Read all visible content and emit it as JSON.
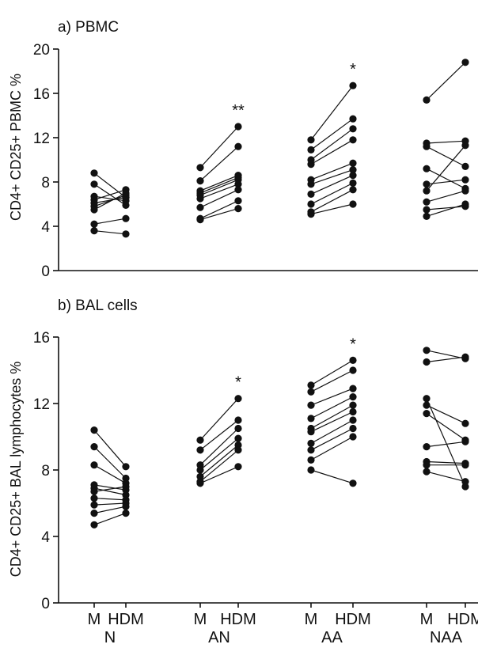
{
  "chart_data": [
    {
      "type": "scatter",
      "panel_label": "a) PBMC",
      "ylabel": "CD4+ CD25+ PBMC  %",
      "ylim": [
        0,
        20
      ],
      "yticks": [
        0,
        4,
        8,
        12,
        16,
        20
      ],
      "groups": [
        {
          "name": "N",
          "significance": "",
          "pairs": [
            [
              8.8,
              6.6
            ],
            [
              7.8,
              5.9
            ],
            [
              6.7,
              6.3
            ],
            [
              6.4,
              7.3
            ],
            [
              6.1,
              6.6
            ],
            [
              5.8,
              6.8
            ],
            [
              5.5,
              7.0
            ],
            [
              4.2,
              4.7
            ],
            [
              3.6,
              3.3
            ]
          ]
        },
        {
          "name": "AN",
          "significance": "**",
          "pairs": [
            [
              9.3,
              13.0
            ],
            [
              8.1,
              11.2
            ],
            [
              7.2,
              8.6
            ],
            [
              7.0,
              8.4
            ],
            [
              6.8,
              8.2
            ],
            [
              6.5,
              7.8
            ],
            [
              5.7,
              7.3
            ],
            [
              4.7,
              6.3
            ],
            [
              4.6,
              5.6
            ]
          ]
        },
        {
          "name": "AA",
          "significance": "*",
          "pairs": [
            [
              11.8,
              16.7
            ],
            [
              10.9,
              13.7
            ],
            [
              10.0,
              12.8
            ],
            [
              9.6,
              11.8
            ],
            [
              8.2,
              9.7
            ],
            [
              7.8,
              9.1
            ],
            [
              6.9,
              8.6
            ],
            [
              6.0,
              7.9
            ],
            [
              5.3,
              7.3
            ],
            [
              5.1,
              6.0
            ]
          ]
        },
        {
          "name": "NAA",
          "significance": "",
          "pairs": [
            [
              15.4,
              18.8
            ],
            [
              11.5,
              11.7
            ],
            [
              11.2,
              9.4
            ],
            [
              9.2,
              7.4
            ],
            [
              7.8,
              8.2
            ],
            [
              7.2,
              11.3
            ],
            [
              6.2,
              7.2
            ],
            [
              5.5,
              5.8
            ],
            [
              4.9,
              6.0
            ]
          ]
        }
      ]
    },
    {
      "type": "scatter",
      "panel_label": "b)  BAL cells",
      "ylabel": "CD4+ CD25+ BAL lymphocytes %",
      "ylim": [
        0,
        16
      ],
      "yticks": [
        0,
        4,
        8,
        12,
        16
      ],
      "categories": [
        "M",
        "HDM",
        "M",
        "HDM",
        "M",
        "HDM",
        "M",
        "HDM"
      ],
      "group_labels": [
        "N",
        "AN",
        "AA",
        "NAA"
      ],
      "groups": [
        {
          "name": "N",
          "significance": "",
          "pairs": [
            [
              10.4,
              8.2
            ],
            [
              9.4,
              7.5
            ],
            [
              8.3,
              7.2
            ],
            [
              7.1,
              6.8
            ],
            [
              6.9,
              6.5
            ],
            [
              6.7,
              7.0
            ],
            [
              6.3,
              6.2
            ],
            [
              5.9,
              6.0
            ],
            [
              5.4,
              5.8
            ],
            [
              4.7,
              5.4
            ]
          ]
        },
        {
          "name": "AN",
          "significance": "*",
          "pairs": [
            [
              9.8,
              12.3
            ],
            [
              9.2,
              11.0
            ],
            [
              8.3,
              10.5
            ],
            [
              8.0,
              9.9
            ],
            [
              7.6,
              9.5
            ],
            [
              7.3,
              9.2
            ],
            [
              7.2,
              8.2
            ]
          ]
        },
        {
          "name": "AA",
          "significance": "*",
          "pairs": [
            [
              13.1,
              14.6
            ],
            [
              12.7,
              14.0
            ],
            [
              11.9,
              12.9
            ],
            [
              11.1,
              12.4
            ],
            [
              10.5,
              11.9
            ],
            [
              10.3,
              11.5
            ],
            [
              9.6,
              11.0
            ],
            [
              9.2,
              10.5
            ],
            [
              8.6,
              10.0
            ],
            [
              8.0,
              7.2
            ]
          ]
        },
        {
          "name": "NAA",
          "significance": "",
          "pairs": [
            [
              15.2,
              14.7
            ],
            [
              14.5,
              14.8
            ],
            [
              12.3,
              7.0
            ],
            [
              11.9,
              10.8
            ],
            [
              11.4,
              9.8
            ],
            [
              9.4,
              9.7
            ],
            [
              8.5,
              8.4
            ],
            [
              8.3,
              8.3
            ],
            [
              7.9,
              7.3
            ]
          ]
        }
      ]
    }
  ]
}
